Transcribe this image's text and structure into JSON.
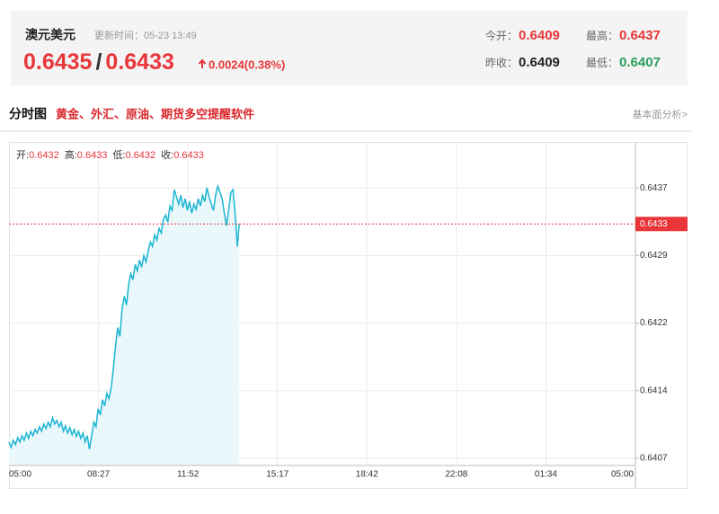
{
  "header": {
    "symbol": "澳元美元",
    "update_label": "更新时间：",
    "update_time": "05-23 13:49",
    "bid": "0.6435",
    "separator": "/",
    "ask": "0.6433",
    "change": "0.0024(0.38%)",
    "open_label": "今开：",
    "open": "0.6409",
    "high_label": "最高：",
    "high": "0.6437",
    "prev_label": "昨收：",
    "prev": "0.6409",
    "low_label": "最低：",
    "low": "0.6407"
  },
  "section": {
    "title": "分时图",
    "promo": "黄金、外汇、原油、期货多空提醒软件",
    "link": "基本面分析>"
  },
  "chart_data": {
    "type": "line",
    "color": "#1cb5d2",
    "area_color": "#eaf8fc",
    "ohlc": [
      {
        "label": "开:",
        "value": 0.6432
      },
      {
        "label": "高:",
        "value": 0.6433
      },
      {
        "label": "低:",
        "value": 0.6432
      },
      {
        "label": "收:",
        "value": 0.6433
      }
    ],
    "last_price": 0.6433,
    "last_color": "#e8363a",
    "x": [
      "05:00",
      "05:05",
      "05:10",
      "05:15",
      "05:20",
      "05:25",
      "05:30",
      "05:35",
      "05:40",
      "05:45",
      "05:50",
      "05:55",
      "06:00",
      "06:05",
      "06:10",
      "06:15",
      "06:20",
      "06:25",
      "06:30",
      "06:35",
      "06:40",
      "06:45",
      "06:50",
      "06:55",
      "07:00",
      "07:05",
      "07:10",
      "07:15",
      "07:20",
      "07:25",
      "07:30",
      "07:35",
      "07:40",
      "07:45",
      "07:50",
      "07:55",
      "08:00",
      "08:05",
      "08:10",
      "08:15",
      "08:20",
      "08:25",
      "08:30",
      "08:35",
      "08:40",
      "08:45",
      "08:50",
      "08:55",
      "09:00",
      "09:05",
      "09:10",
      "09:15",
      "09:20",
      "09:25",
      "09:30",
      "09:35",
      "09:40",
      "09:45",
      "09:50",
      "09:55",
      "10:00",
      "10:05",
      "10:10",
      "10:15",
      "10:20",
      "10:25",
      "10:30",
      "10:35",
      "10:40",
      "10:45",
      "10:50",
      "10:55",
      "11:00",
      "11:05",
      "11:10",
      "11:15",
      "11:20",
      "11:25",
      "11:30",
      "11:35",
      "11:40",
      "11:45",
      "11:50",
      "11:55",
      "12:00",
      "12:05",
      "12:10",
      "12:15",
      "12:20",
      "12:25",
      "12:30",
      "12:35",
      "12:40",
      "12:45",
      "12:50",
      "12:55",
      "13:00",
      "13:05",
      "13:10",
      "13:15",
      "13:20",
      "13:25",
      "13:30",
      "13:35",
      "13:40",
      "13:45",
      "13:49"
    ],
    "values": [
      0.64088,
      0.64082,
      0.6409,
      0.64085,
      0.64093,
      0.64088,
      0.64095,
      0.6409,
      0.64098,
      0.64092,
      0.641,
      0.64095,
      0.64102,
      0.64098,
      0.64105,
      0.641,
      0.64108,
      0.64103,
      0.6411,
      0.64105,
      0.64115,
      0.64108,
      0.64112,
      0.64105,
      0.6411,
      0.641,
      0.64106,
      0.64098,
      0.64104,
      0.64096,
      0.64102,
      0.64094,
      0.641,
      0.64092,
      0.64098,
      0.64088,
      0.64095,
      0.6408,
      0.64095,
      0.6411,
      0.64105,
      0.64125,
      0.64118,
      0.64135,
      0.64128,
      0.64142,
      0.64136,
      0.64148,
      0.6417,
      0.64195,
      0.64215,
      0.64205,
      0.64235,
      0.6425,
      0.6424,
      0.64262,
      0.64275,
      0.64268,
      0.64285,
      0.64278,
      0.6429,
      0.64282,
      0.64295,
      0.64288,
      0.643,
      0.6431,
      0.64305,
      0.64318,
      0.64312,
      0.64325,
      0.6432,
      0.64335,
      0.6434,
      0.64332,
      0.6435,
      0.64345,
      0.64368,
      0.6436,
      0.64352,
      0.64362,
      0.64348,
      0.64358,
      0.64345,
      0.64355,
      0.64342,
      0.64352,
      0.64346,
      0.64358,
      0.6435,
      0.64362,
      0.64355,
      0.6437,
      0.6436,
      0.64352,
      0.64345,
      0.64362,
      0.64372,
      0.64365,
      0.64358,
      0.64342,
      0.64328,
      0.64345,
      0.64365,
      0.64368,
      0.6434,
      0.64305,
      0.6433
    ],
    "xticks": [
      "05:00",
      "08:27",
      "11:52",
      "15:17",
      "18:42",
      "22:08",
      "01:34",
      "05:00"
    ],
    "ylim": [
      0.64062,
      0.64421
    ],
    "yticks": [
      0.6407,
      {
        "value": 0.64145,
        "label": "0.6414"
      },
      0.6422,
      {
        "value": 0.64295,
        "label": "0.6429"
      },
      0.6437
    ],
    "grid": true
  }
}
